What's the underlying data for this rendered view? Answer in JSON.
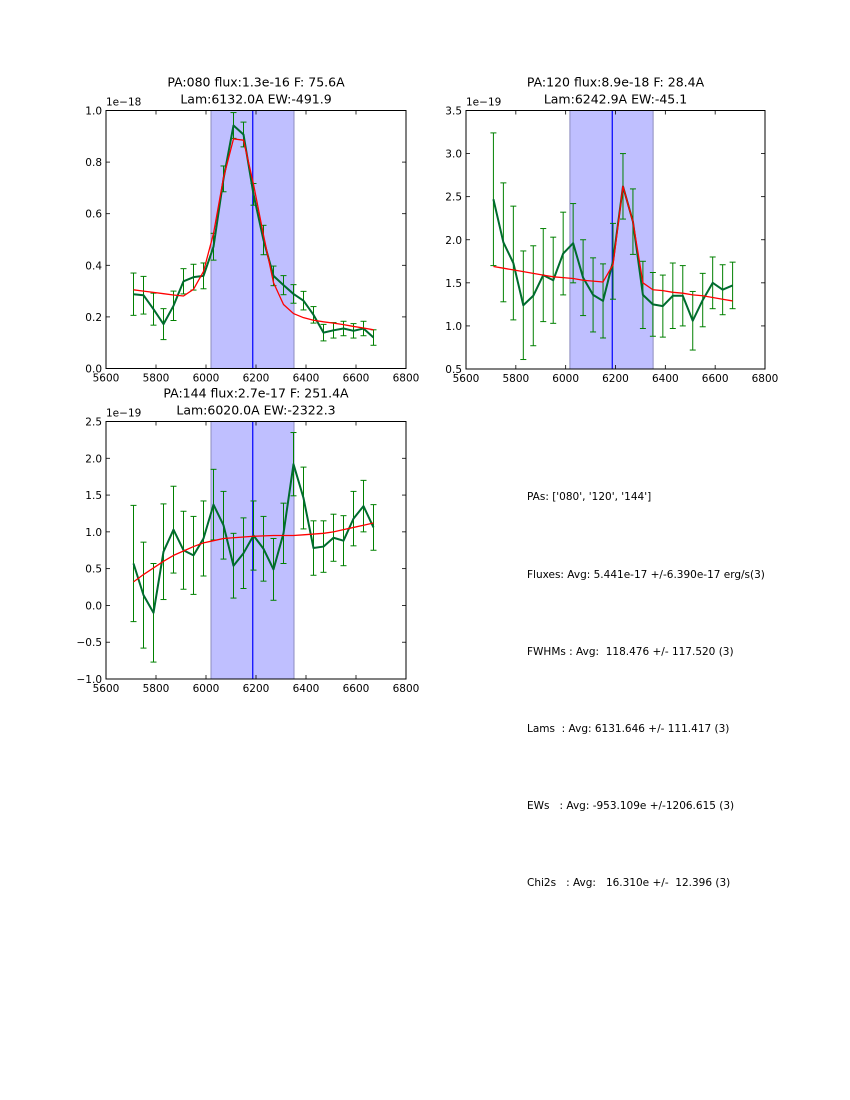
{
  "chart_data": [
    {
      "type": "line",
      "title_line1": "PA:080 flux:1.3e-16 F: 75.6A",
      "title_line2": "Lam:6132.0A EW:-491.9",
      "offset_label": "1e−18",
      "xlabel": "",
      "ylabel": "",
      "xlim": [
        5600,
        6800
      ],
      "ylim": [
        0.0,
        1.0
      ],
      "xticks": [
        5600,
        5800,
        6000,
        6200,
        6400,
        6600,
        6800
      ],
      "xtick_labels": [
        "5600",
        "5800",
        "6000",
        "6200",
        "6400",
        "6600",
        "6800"
      ],
      "yticks": [
        0.0,
        0.2,
        0.4,
        0.6,
        0.8,
        1.0
      ],
      "ytick_labels": [
        "0.0",
        "0.2",
        "0.4",
        "0.6",
        "0.8",
        "1.0"
      ],
      "band": [
        6020,
        6352
      ],
      "vline": 6187,
      "x": [
        5710,
        5750,
        5790,
        5830,
        5870,
        5910,
        5950,
        5990,
        6030,
        6070,
        6110,
        6150,
        6190,
        6230,
        6270,
        6310,
        6350,
        6390,
        6430,
        6470,
        6510,
        6550,
        6590,
        6630,
        6670
      ],
      "series": [
        {
          "name": "data",
          "color": "#006b2e",
          "values": [
            0.288,
            0.284,
            0.23,
            0.172,
            0.243,
            0.338,
            0.354,
            0.359,
            0.472,
            0.735,
            0.942,
            0.907,
            0.675,
            0.498,
            0.359,
            0.323,
            0.289,
            0.263,
            0.208,
            0.139,
            0.148,
            0.155,
            0.146,
            0.155,
            0.12
          ],
          "errors": [
            0.082,
            0.073,
            0.062,
            0.06,
            0.057,
            0.049,
            0.05,
            0.05,
            0.052,
            0.05,
            0.05,
            0.048,
            0.042,
            0.057,
            0.038,
            0.037,
            0.036,
            0.036,
            0.032,
            0.032,
            0.03,
            0.028,
            0.028,
            0.028,
            0.03
          ]
        },
        {
          "name": "fit",
          "color": "#ff0000",
          "values": [
            0.305,
            0.3,
            0.295,
            0.29,
            0.285,
            0.281,
            0.307,
            0.376,
            0.523,
            0.739,
            0.89,
            0.885,
            0.714,
            0.517,
            0.333,
            0.248,
            0.213,
            0.197,
            0.187,
            0.181,
            0.176,
            0.17,
            0.163,
            0.157,
            0.15
          ]
        }
      ]
    },
    {
      "type": "line",
      "title_line1": "PA:120 flux:8.9e-18 F: 28.4A",
      "title_line2": "Lam:6242.9A EW:-45.1",
      "offset_label": "1e−19",
      "xlabel": "",
      "ylabel": "",
      "xlim": [
        5600,
        6800
      ],
      "ylim": [
        0.5,
        3.5
      ],
      "xticks": [
        5600,
        5800,
        6000,
        6200,
        6400,
        6600,
        6800
      ],
      "xtick_labels": [
        "5600",
        "5800",
        "6000",
        "6200",
        "6400",
        "6600",
        "6800"
      ],
      "yticks": [
        0.5,
        1.0,
        1.5,
        2.0,
        2.5,
        3.0,
        3.5
      ],
      "ytick_labels": [
        "0.5",
        "1.0",
        "1.5",
        "2.0",
        "2.5",
        "3.0",
        "3.5"
      ],
      "band": [
        6017,
        6351
      ],
      "vline": 6187,
      "x": [
        5710,
        5750,
        5790,
        5830,
        5870,
        5910,
        5950,
        5990,
        6030,
        6070,
        6110,
        6150,
        6190,
        6230,
        6270,
        6310,
        6350,
        6390,
        6430,
        6470,
        6510,
        6550,
        6590,
        6630,
        6670
      ],
      "series": [
        {
          "name": "data",
          "color": "#006b2e",
          "values": [
            2.47,
            1.97,
            1.73,
            1.24,
            1.35,
            1.59,
            1.53,
            1.84,
            1.96,
            1.56,
            1.36,
            1.29,
            1.75,
            2.62,
            2.21,
            1.36,
            1.25,
            1.23,
            1.35,
            1.35,
            1.06,
            1.3,
            1.5,
            1.42,
            1.47
          ],
          "errors": [
            0.77,
            0.69,
            0.66,
            0.63,
            0.58,
            0.54,
            0.5,
            0.48,
            0.46,
            0.44,
            0.43,
            0.43,
            0.44,
            0.38,
            0.38,
            0.39,
            0.37,
            0.36,
            0.38,
            0.35,
            0.34,
            0.31,
            0.3,
            0.29,
            0.27
          ]
        },
        {
          "name": "fit",
          "color": "#ff0000",
          "values": [
            1.69,
            1.67,
            1.65,
            1.63,
            1.61,
            1.59,
            1.57,
            1.56,
            1.55,
            1.53,
            1.52,
            1.51,
            1.71,
            2.62,
            2.21,
            1.5,
            1.42,
            1.41,
            1.39,
            1.38,
            1.36,
            1.35,
            1.33,
            1.31,
            1.29
          ]
        }
      ]
    },
    {
      "type": "line",
      "title_line1": "PA:144 flux:2.7e-17 F: 251.4A",
      "title_line2": "Lam:6020.0A EW:-2322.3",
      "offset_label": "1e−19",
      "xlabel": "",
      "ylabel": "",
      "xlim": [
        5600,
        6800
      ],
      "ylim": [
        -1.0,
        2.5
      ],
      "xticks": [
        5600,
        5800,
        6000,
        6200,
        6400,
        6600,
        6800
      ],
      "xtick_labels": [
        "5600",
        "5800",
        "6000",
        "6200",
        "6400",
        "6600",
        "6800"
      ],
      "yticks": [
        -1.0,
        -0.5,
        0.0,
        0.5,
        1.0,
        1.5,
        2.0,
        2.5
      ],
      "ytick_labels": [
        "−1.0",
        "−0.5",
        "0.0",
        "0.5",
        "1.0",
        "1.5",
        "2.0",
        "2.5"
      ],
      "band": [
        6020,
        6352
      ],
      "vline": 6187,
      "x": [
        5710,
        5750,
        5790,
        5830,
        5870,
        5910,
        5950,
        5990,
        6030,
        6070,
        6110,
        6150,
        6190,
        6230,
        6270,
        6310,
        6350,
        6390,
        6430,
        6470,
        6510,
        6550,
        6590,
        6630,
        6670
      ],
      "series": [
        {
          "name": "data",
          "color": "#006b2e",
          "values": [
            0.57,
            0.14,
            -0.1,
            0.73,
            1.03,
            0.75,
            0.68,
            0.91,
            1.37,
            1.09,
            0.54,
            0.71,
            0.95,
            0.77,
            0.49,
            0.98,
            1.92,
            1.46,
            0.78,
            0.8,
            0.92,
            0.88,
            1.18,
            1.35,
            1.06
          ],
          "errors": [
            0.79,
            0.72,
            0.67,
            0.65,
            0.59,
            0.53,
            0.53,
            0.51,
            0.48,
            0.46,
            0.44,
            0.48,
            0.47,
            0.44,
            0.42,
            0.41,
            0.43,
            0.42,
            0.37,
            0.35,
            0.32,
            0.34,
            0.37,
            0.35,
            0.31
          ]
        },
        {
          "name": "fit",
          "color": "#ff0000",
          "values": [
            0.32,
            0.42,
            0.51,
            0.6,
            0.68,
            0.74,
            0.8,
            0.85,
            0.88,
            0.91,
            0.92,
            0.93,
            0.94,
            0.945,
            0.95,
            0.95,
            0.95,
            0.96,
            0.97,
            0.98,
            1.0,
            1.03,
            1.06,
            1.09,
            1.12
          ]
        }
      ]
    }
  ],
  "summary": {
    "lines": [
      "PAs: ['080', '120', '144']",
      "Fluxes: Avg: 5.441e-17 +/-6.390e-17 erg/s(3)",
      "FWHMs : Avg:  118.476 +/- 117.520 (3)",
      "Lams  : Avg: 6131.646 +/- 111.417 (3)",
      "EWs   : Avg: -953.109e +/-1206.615 (3)",
      "Chi2s   : Avg:   16.310e +/-  12.396 (3)"
    ]
  },
  "colors": {
    "band_fill": "#bfbfff",
    "band_edge": "#8c8cbf",
    "vline": "#0000ff",
    "errorbar": "#008000"
  }
}
